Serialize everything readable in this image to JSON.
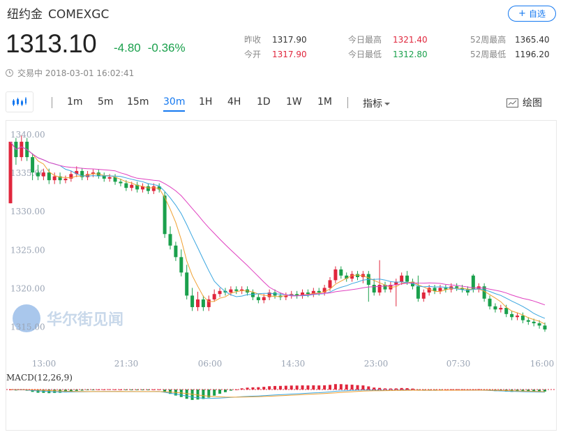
{
  "header": {
    "name": "纽约金",
    "code": "COMEXGC",
    "follow_label": "自选",
    "price": "1313.10",
    "change": "-4.80",
    "change_pct": "-0.36%"
  },
  "stats": {
    "prev_close_label": "昨收",
    "prev_close": "1317.90",
    "open_label": "今开",
    "open": "1317.90",
    "day_high_label": "今日最高",
    "day_high": "1321.40",
    "day_low_label": "今日最低",
    "day_low": "1312.80",
    "wk52_high_label": "52周最高",
    "wk52_high": "1365.40",
    "wk52_low_label": "52周最低",
    "wk52_low": "1196.20"
  },
  "status": {
    "state": "交易中",
    "time": "2018-03-01 16:02:41"
  },
  "toolbar": {
    "periods": [
      "1m",
      "5m",
      "15m",
      "30m",
      "1H",
      "4H",
      "1D",
      "1W",
      "1M"
    ],
    "active_period": "30m",
    "indicator_label": "指标",
    "draw_label": "绘图"
  },
  "watermark": "华尔街见闻",
  "colors": {
    "up": "#e0263c",
    "down": "#1aa04c",
    "accent": "#1478f0",
    "ma_short": "#f0a030",
    "ma_mid": "#3aa6e0",
    "ma_long": "#e040c0"
  },
  "chart_data": {
    "type": "candlestick",
    "y_ticks": [
      "1340.00",
      "1335.00",
      "1330.00",
      "1325.00",
      "1320.00",
      "1315.00"
    ],
    "ylim": [
      1314.5,
      1341.0
    ],
    "x_labels": [
      "13:00",
      "21:30",
      "06:00",
      "14:30",
      "23:00",
      "07:30",
      "16:00"
    ],
    "candles": [
      [
        1331,
        1339,
        1339,
        1331
      ],
      [
        1339,
        1337,
        1339.5,
        1336
      ],
      [
        1337,
        1339,
        1339.8,
        1336.5
      ],
      [
        1339,
        1337,
        1339.5,
        1336.5
      ],
      [
        1337,
        1335,
        1337.5,
        1334
      ],
      [
        1335,
        1334.5,
        1336,
        1334
      ],
      [
        1334.5,
        1335,
        1335.5,
        1334
      ],
      [
        1335,
        1334,
        1335.5,
        1333.5
      ],
      [
        1334,
        1334.5,
        1335,
        1333.5
      ],
      [
        1334.5,
        1334,
        1335,
        1333.5
      ],
      [
        1334,
        1334.2,
        1334.6,
        1333.6
      ],
      [
        1334.2,
        1334.8,
        1335.2,
        1333.8
      ],
      [
        1334.8,
        1335.2,
        1335.8,
        1334.4
      ],
      [
        1335.2,
        1334.4,
        1335.6,
        1334
      ],
      [
        1334.4,
        1334.8,
        1335.2,
        1334
      ],
      [
        1334.8,
        1335,
        1335.4,
        1334.4
      ],
      [
        1335,
        1334.6,
        1335.4,
        1334.2
      ],
      [
        1334.6,
        1334.2,
        1335,
        1333.8
      ],
      [
        1334.2,
        1334.4,
        1334.8,
        1333.8
      ],
      [
        1334.4,
        1333.8,
        1334.8,
        1333.4
      ],
      [
        1333.8,
        1333.6,
        1334.2,
        1333.2
      ],
      [
        1333.6,
        1333,
        1334,
        1332.6
      ],
      [
        1333,
        1333.4,
        1333.8,
        1332.6
      ],
      [
        1333.4,
        1332.8,
        1333.8,
        1332.4
      ],
      [
        1332.8,
        1333.2,
        1333.6,
        1332.4
      ],
      [
        1333.2,
        1332.6,
        1333.6,
        1332.2
      ],
      [
        1332.6,
        1333.2,
        1333.6,
        1332.2
      ],
      [
        1333.2,
        1332.8,
        1333.6,
        1332.4
      ],
      [
        1332,
        1327,
        1332.5,
        1326.5
      ],
      [
        1327,
        1325.5,
        1328,
        1325
      ],
      [
        1325.5,
        1324,
        1326,
        1323.5
      ],
      [
        1324,
        1322,
        1325,
        1321.5
      ],
      [
        1322,
        1319,
        1323,
        1318.5
      ],
      [
        1319,
        1317.5,
        1320,
        1317
      ],
      [
        1317.5,
        1318.5,
        1319.5,
        1317
      ],
      [
        1318.5,
        1317.5,
        1319,
        1317
      ],
      [
        1317.5,
        1318.5,
        1319,
        1317
      ],
      [
        1318.5,
        1319.2,
        1319.8,
        1318.2
      ],
      [
        1319.2,
        1319.6,
        1320,
        1318.8
      ],
      [
        1319.6,
        1319.4,
        1320,
        1319
      ],
      [
        1319.4,
        1319.8,
        1320.2,
        1319
      ],
      [
        1319.8,
        1319.6,
        1320.2,
        1319.2
      ],
      [
        1319.6,
        1319.8,
        1320.2,
        1319.2
      ],
      [
        1319.8,
        1319.4,
        1320.2,
        1319
      ],
      [
        1319.4,
        1318.8,
        1319.8,
        1318.4
      ],
      [
        1318.8,
        1318.4,
        1319.2,
        1318
      ],
      [
        1318.4,
        1318.8,
        1319.2,
        1318
      ],
      [
        1318.8,
        1319.4,
        1319.8,
        1318.4
      ],
      [
        1319.4,
        1319,
        1319.8,
        1318.6
      ],
      [
        1319,
        1318.8,
        1319.4,
        1318.4
      ],
      [
        1318.8,
        1319,
        1319.4,
        1318.4
      ],
      [
        1319,
        1319.2,
        1319.6,
        1318.6
      ],
      [
        1319.2,
        1319,
        1319.6,
        1318.6
      ],
      [
        1319,
        1319.4,
        1319.8,
        1318.6
      ],
      [
        1319.4,
        1319.2,
        1319.8,
        1318.8
      ],
      [
        1319.2,
        1319.6,
        1320,
        1318.8
      ],
      [
        1319.6,
        1319.4,
        1320,
        1319
      ],
      [
        1319.4,
        1320,
        1320.4,
        1319
      ],
      [
        1320,
        1321,
        1321.4,
        1319.6
      ],
      [
        1321,
        1322.4,
        1322.8,
        1320.6
      ],
      [
        1322.4,
        1321.6,
        1322.8,
        1321.2
      ],
      [
        1321.6,
        1321.2,
        1322,
        1320.8
      ],
      [
        1321.2,
        1321.8,
        1322.2,
        1320.8
      ],
      [
        1321.8,
        1321.4,
        1322.2,
        1321
      ],
      [
        1321.4,
        1321.8,
        1322.2,
        1320.6
      ],
      [
        1321.8,
        1320.4,
        1322.2,
        1318.2
      ],
      [
        1320.4,
        1319.4,
        1321.2,
        1319
      ],
      [
        1319.4,
        1320.4,
        1323.6,
        1319
      ],
      [
        1320.4,
        1319.8,
        1320.8,
        1319.4
      ],
      [
        1319.8,
        1320.4,
        1320.8,
        1319.4
      ],
      [
        1320.4,
        1320.8,
        1321.2,
        1317.6
      ],
      [
        1320.8,
        1321.6,
        1322,
        1320.4
      ],
      [
        1321.6,
        1320.8,
        1322.2,
        1320.4
      ],
      [
        1320.8,
        1320.2,
        1321.2,
        1319.8
      ],
      [
        1320.2,
        1318.6,
        1321.6,
        1318.2
      ],
      [
        1318.6,
        1319.4,
        1319.8,
        1318.2
      ],
      [
        1319.4,
        1320,
        1320.4,
        1319
      ],
      [
        1320,
        1319.6,
        1320.4,
        1319.2
      ],
      [
        1319.6,
        1320,
        1320.4,
        1319.2
      ],
      [
        1320,
        1319.8,
        1320.4,
        1319.4
      ],
      [
        1319.8,
        1320.2,
        1320.6,
        1319.4
      ],
      [
        1320.2,
        1320,
        1320.6,
        1319.6
      ],
      [
        1320,
        1319.8,
        1320.4,
        1319.4
      ],
      [
        1319.8,
        1319.4,
        1320.2,
        1319
      ],
      [
        1321.6,
        1319.8,
        1321.8,
        1319.4
      ],
      [
        1319.8,
        1320.2,
        1320.6,
        1319.4
      ],
      [
        1320.2,
        1318.6,
        1320.6,
        1318.2
      ],
      [
        1318.6,
        1317.6,
        1319,
        1317.2
      ],
      [
        1317.6,
        1317.2,
        1318,
        1316.8
      ],
      [
        1317.2,
        1317.4,
        1317.8,
        1316.8
      ],
      [
        1317.4,
        1316.6,
        1317.8,
        1316.2
      ],
      [
        1316.6,
        1316.2,
        1317,
        1315.8
      ],
      [
        1316.2,
        1316.4,
        1316.8,
        1315.8
      ],
      [
        1316.4,
        1315.8,
        1316.8,
        1315.4
      ],
      [
        1315.8,
        1315.6,
        1316.2,
        1315.2
      ],
      [
        1315.6,
        1315.4,
        1316,
        1315
      ],
      [
        1315.4,
        1315.1,
        1315.8,
        1314.7
      ],
      [
        1315.1,
        1314.6,
        1315.5,
        1314.3
      ]
    ],
    "macd_label": "MACD(12,26,9)"
  }
}
